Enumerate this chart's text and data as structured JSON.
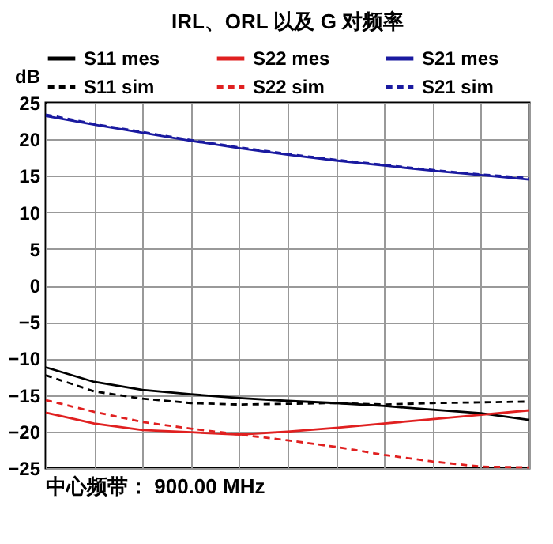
{
  "chart_data": {
    "type": "line",
    "title": "IRL、ORL 以及 G 对频率",
    "ylabel": "dB",
    "categories": [
      null,
      null,
      null,
      null,
      null,
      null,
      null,
      null,
      null,
      null,
      null
    ],
    "series": [
      {
        "name": "S11 mes",
        "color": "#000000",
        "line_style": "solid",
        "values": [
          -11.2,
          -13.2,
          -14.3,
          -14.9,
          -15.4,
          -15.8,
          -16.1,
          -16.5,
          -17.0,
          -17.5,
          -18.4
        ]
      },
      {
        "name": "S22 mes",
        "color": "#e02020",
        "line_style": "solid",
        "values": [
          -17.4,
          -18.9,
          -19.8,
          -20.1,
          -20.4,
          -20.0,
          -19.5,
          -18.9,
          -18.3,
          -17.7,
          -17.1
        ]
      },
      {
        "name": "S21 mes",
        "color": "#1a1aa0",
        "line_style": "solid",
        "values": [
          23.2,
          22.0,
          20.9,
          19.8,
          18.8,
          17.9,
          17.1,
          16.4,
          15.7,
          15.1,
          14.5
        ]
      },
      {
        "name": "S11 sim",
        "color": "#000000",
        "line_style": "dashed",
        "values": [
          -12.3,
          -14.5,
          -15.5,
          -16.1,
          -16.3,
          -16.2,
          -16.1,
          -16.3,
          -16.1,
          -16.0,
          -15.9
        ]
      },
      {
        "name": "S22 sim",
        "color": "#e02020",
        "line_style": "dashed",
        "values": [
          -15.7,
          -17.3,
          -18.7,
          -19.6,
          -20.4,
          -21.2,
          -22.1,
          -23.2,
          -24.1,
          -24.8,
          -24.9
        ]
      },
      {
        "name": "S21 sim",
        "color": "#1a1aa0",
        "line_style": "dashed",
        "values": [
          23.4,
          22.1,
          21.0,
          19.9,
          18.9,
          18.0,
          17.2,
          16.5,
          15.8,
          15.2,
          14.7
        ]
      }
    ],
    "ylim": [
      -25,
      25
    ],
    "yticks": [
      -25,
      -20,
      -15,
      -10,
      -5,
      0,
      5,
      10,
      15,
      20,
      25
    ],
    "grid": true,
    "legend": "top left",
    "marker": "none",
    "annotations": [
      "中心频带： 900.00 MHz"
    ]
  }
}
